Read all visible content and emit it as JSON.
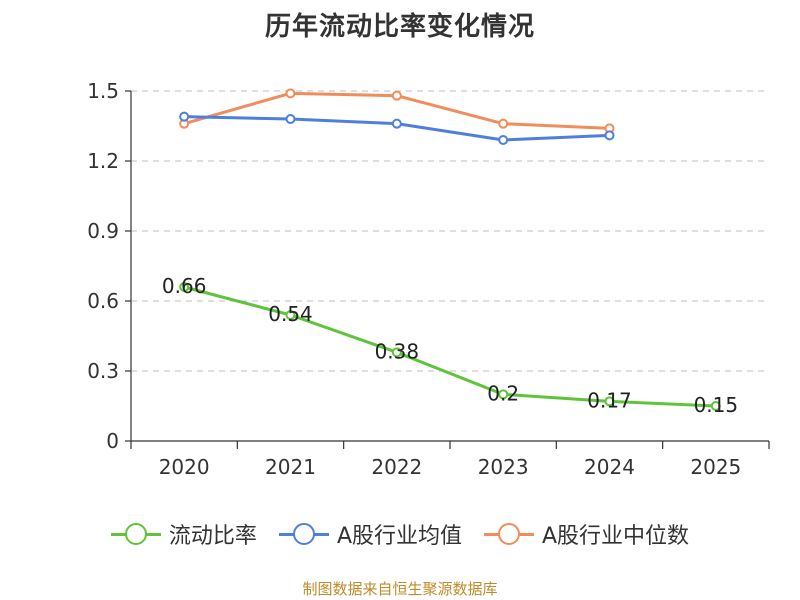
{
  "chart_data": {
    "type": "line",
    "title": "历年流动比率变化情况",
    "categories": [
      "2020",
      "2021",
      "2022",
      "2023",
      "2024",
      "2025"
    ],
    "ylim": [
      0,
      1.5
    ],
    "yticks": [
      "0",
      "0.3",
      "0.6",
      "0.9",
      "1.2",
      "1.5"
    ],
    "ytick_values": [
      0,
      0.3,
      0.6,
      0.9,
      1.2,
      1.5
    ],
    "grid": true,
    "xlabel": "",
    "ylabel": "",
    "legend_position": "bottom",
    "series": [
      {
        "name": "流动比率",
        "color": "#5ec43a",
        "values": [
          0.66,
          0.54,
          0.38,
          0.2,
          0.17,
          0.15
        ],
        "labels": [
          "0.66",
          "0.54",
          "0.38",
          "0.2",
          "0.17",
          "0.15"
        ]
      },
      {
        "name": "A股行业均值",
        "color": "#4f7fdd",
        "values": [
          1.39,
          1.38,
          1.36,
          1.29,
          1.31,
          null
        ]
      },
      {
        "name": "A股行业中位数",
        "color": "#f28c5a",
        "values": [
          1.36,
          1.49,
          1.48,
          1.36,
          1.34,
          null
        ]
      }
    ]
  },
  "source_text": "制图数据来自恒生聚源数据库"
}
